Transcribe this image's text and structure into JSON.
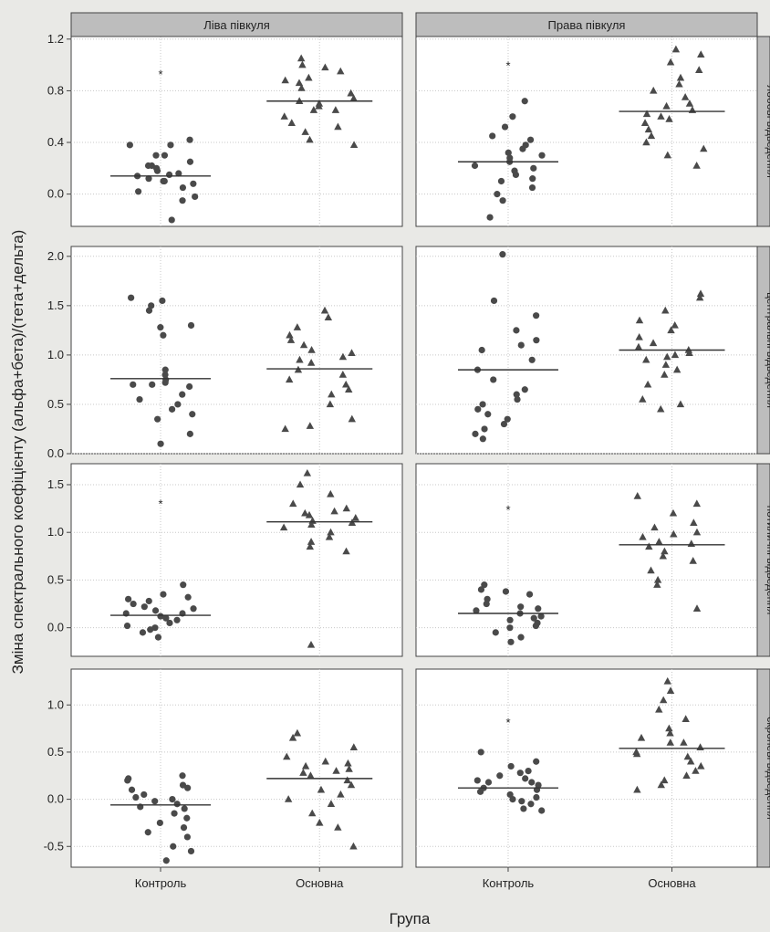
{
  "chart_data": {
    "type": "scatter",
    "xlabel": "Група",
    "ylabel": "Зміна спектрального коефіцієнту (альфа+бета)/(тета+дельта)",
    "categories": [
      "Контроль",
      "Основна"
    ],
    "columns": [
      "Ліва півкуля",
      "Права півкуля"
    ],
    "rows": [
      "лобові відведення",
      "центральні відведення",
      "потиличні відведення",
      "скроневі відведення"
    ],
    "significance_marker": "*",
    "panels": [
      {
        "row": 0,
        "col": 0,
        "ylim": [
          -0.25,
          1.22
        ],
        "yticks": [
          "0.0",
          "0.4",
          "0.8",
          "1.2"
        ],
        "ytick_values": [
          0,
          0.4,
          0.8,
          1.2
        ],
        "control": [
          0.42,
          0.38,
          0.3,
          0.22,
          0.18,
          0.15,
          0.14,
          0.12,
          0.1,
          0.08,
          0.05,
          0.02,
          -0.02,
          -0.05,
          0.2,
          0.25,
          0.3,
          0.38,
          0.22,
          0.16,
          0.1,
          -0.2
        ],
        "treatment": [
          1.05,
          1.0,
          0.98,
          0.95,
          0.9,
          0.86,
          0.82,
          0.78,
          0.74,
          0.7,
          0.68,
          0.65,
          0.6,
          0.55,
          0.52,
          0.48,
          0.42,
          0.38,
          0.65,
          0.72,
          0.88
        ],
        "control_mean": 0.14,
        "treatment_mean": 0.72,
        "star_y": 0.95
      },
      {
        "row": 0,
        "col": 1,
        "ylim": [
          -0.25,
          1.22
        ],
        "control": [
          0.72,
          0.6,
          0.52,
          0.45,
          0.42,
          0.38,
          0.32,
          0.28,
          0.25,
          0.22,
          0.18,
          0.15,
          0.1,
          0.05,
          0.0,
          -0.05,
          -0.18,
          0.3,
          0.35,
          0.2,
          0.12
        ],
        "treatment": [
          1.12,
          1.08,
          1.02,
          0.96,
          0.9,
          0.85,
          0.8,
          0.75,
          0.7,
          0.65,
          0.62,
          0.58,
          0.55,
          0.5,
          0.45,
          0.4,
          0.35,
          0.3,
          0.22,
          0.6,
          0.68
        ],
        "control_mean": 0.25,
        "treatment_mean": 0.64,
        "star_y": 1.02
      },
      {
        "row": 1,
        "col": 0,
        "ylim": [
          0,
          2.1
        ],
        "yticks": [
          "0.0",
          "0.5",
          "1.0",
          "1.5",
          "2.0"
        ],
        "ytick_values": [
          0,
          0.5,
          1.0,
          1.5,
          2.0
        ],
        "control": [
          1.58,
          1.5,
          1.45,
          1.3,
          1.2,
          0.85,
          0.8,
          0.75,
          0.72,
          0.7,
          0.68,
          0.6,
          0.55,
          0.5,
          0.45,
          0.4,
          0.35,
          0.2,
          0.1,
          1.55,
          1.28,
          0.7
        ],
        "treatment": [
          1.45,
          1.38,
          1.28,
          1.2,
          1.15,
          1.1,
          1.05,
          0.98,
          0.95,
          0.92,
          0.85,
          0.8,
          0.75,
          0.7,
          0.65,
          0.6,
          0.5,
          0.35,
          0.28,
          0.25,
          1.02
        ],
        "control_mean": 0.76,
        "treatment_mean": 0.86
      },
      {
        "row": 1,
        "col": 1,
        "ylim": [
          0,
          2.1
        ],
        "control": [
          2.02,
          1.55,
          1.4,
          1.25,
          1.15,
          1.1,
          1.05,
          0.95,
          0.85,
          0.75,
          0.65,
          0.55,
          0.5,
          0.45,
          0.4,
          0.35,
          0.3,
          0.25,
          0.2,
          0.15,
          0.6
        ],
        "treatment": [
          1.62,
          1.58,
          1.45,
          1.35,
          1.25,
          1.18,
          1.12,
          1.08,
          1.05,
          1.02,
          1.0,
          0.98,
          0.95,
          0.9,
          0.85,
          0.8,
          0.7,
          0.55,
          0.5,
          0.45,
          1.3
        ],
        "control_mean": 0.85,
        "treatment_mean": 1.05
      },
      {
        "row": 2,
        "col": 0,
        "ylim": [
          -0.3,
          1.72
        ],
        "yticks": [
          "0.0",
          "0.5",
          "1.0",
          "1.5"
        ],
        "ytick_values": [
          0,
          0.5,
          1.0,
          1.5
        ],
        "control": [
          0.45,
          0.35,
          0.3,
          0.25,
          0.22,
          0.2,
          0.18,
          0.15,
          0.12,
          0.1,
          0.08,
          0.05,
          0.02,
          0.0,
          -0.02,
          -0.05,
          -0.1,
          0.28,
          0.32,
          0.15
        ],
        "treatment": [
          1.62,
          1.5,
          1.4,
          1.3,
          1.25,
          1.2,
          1.18,
          1.15,
          1.12,
          1.1,
          1.05,
          1.0,
          0.95,
          0.9,
          0.85,
          0.8,
          1.22,
          1.08,
          -0.18
        ],
        "control_mean": 0.13,
        "treatment_mean": 1.11,
        "star_y": 1.33
      },
      {
        "row": 2,
        "col": 1,
        "ylim": [
          -0.3,
          1.72
        ],
        "control": [
          0.45,
          0.4,
          0.35,
          0.3,
          0.25,
          0.22,
          0.2,
          0.15,
          0.12,
          0.1,
          0.08,
          0.05,
          0.0,
          -0.05,
          -0.1,
          -0.15,
          0.38,
          0.18,
          0.02
        ],
        "treatment": [
          1.38,
          1.3,
          1.2,
          1.1,
          1.05,
          1.0,
          0.95,
          0.9,
          0.85,
          0.8,
          0.75,
          0.7,
          0.6,
          0.5,
          0.45,
          0.2,
          0.88,
          0.98
        ],
        "control_mean": 0.15,
        "treatment_mean": 0.87,
        "star_y": 1.27
      },
      {
        "row": 3,
        "col": 0,
        "ylim": [
          -0.72,
          1.38
        ],
        "yticks": [
          "-0.5",
          "0.0",
          "0.5",
          "1.0"
        ],
        "ytick_values": [
          -0.5,
          0,
          0.5,
          1.0
        ],
        "control": [
          0.25,
          0.22,
          0.2,
          0.15,
          0.1,
          0.05,
          0.02,
          0.0,
          -0.02,
          -0.05,
          -0.1,
          -0.15,
          -0.2,
          -0.25,
          -0.3,
          -0.35,
          -0.4,
          -0.5,
          -0.55,
          -0.65,
          0.12,
          -0.08
        ],
        "treatment": [
          0.7,
          0.65,
          0.55,
          0.45,
          0.4,
          0.38,
          0.35,
          0.3,
          0.28,
          0.25,
          0.2,
          0.15,
          0.1,
          0.05,
          0.0,
          -0.05,
          -0.15,
          -0.25,
          -0.3,
          -0.5,
          0.32
        ],
        "control_mean": -0.06,
        "treatment_mean": 0.22
      },
      {
        "row": 3,
        "col": 1,
        "ylim": [
          -0.72,
          1.38
        ],
        "control": [
          0.5,
          0.4,
          0.35,
          0.3,
          0.25,
          0.22,
          0.2,
          0.18,
          0.15,
          0.12,
          0.1,
          0.08,
          0.05,
          0.02,
          0.0,
          -0.02,
          -0.05,
          -0.1,
          -0.12,
          0.18,
          0.28
        ],
        "treatment": [
          1.25,
          1.15,
          1.05,
          0.95,
          0.85,
          0.75,
          0.7,
          0.65,
          0.6,
          0.55,
          0.5,
          0.48,
          0.45,
          0.4,
          0.35,
          0.3,
          0.25,
          0.2,
          0.15,
          0.1,
          0.6
        ],
        "control_mean": 0.12,
        "treatment_mean": 0.54,
        "star_y": 0.85
      }
    ]
  }
}
